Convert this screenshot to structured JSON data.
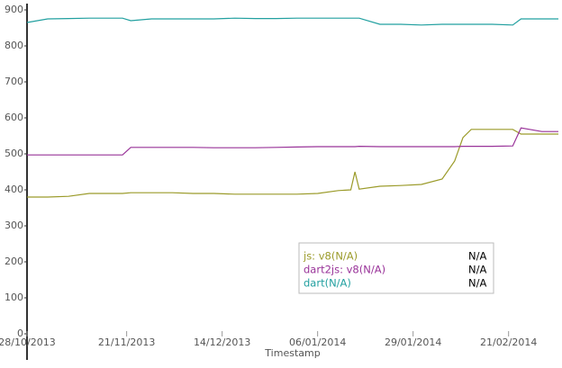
{
  "chart_data": {
    "type": "line",
    "x_label": "Timestamp",
    "x": [
      "28/10/2013",
      "02/11/2013",
      "07/11/2013",
      "12/11/2013",
      "17/11/2013",
      "20/11/2013",
      "22/11/2013",
      "27/11/2013",
      "02/12/2013",
      "07/12/2013",
      "12/12/2013",
      "17/12/2013",
      "22/12/2013",
      "27/12/2013",
      "01/01/2014",
      "06/01/2014",
      "11/01/2014",
      "14/01/2014",
      "15/01/2014",
      "16/01/2014",
      "21/01/2014",
      "26/01/2014",
      "31/01/2014",
      "05/02/2014",
      "08/02/2014",
      "10/02/2014",
      "12/02/2014",
      "17/02/2014",
      "22/02/2014",
      "24/02/2014",
      "01/03/2014",
      "05/03/2014"
    ],
    "series": [
      {
        "name": "js: v8(N/A)",
        "legend_value": "N/A",
        "color": "#9b9b2a",
        "values": [
          380,
          380,
          382,
          390,
          390,
          390,
          392,
          392,
          392,
          390,
          390,
          388,
          388,
          388,
          388,
          390,
          398,
          400,
          450,
          402,
          410,
          412,
          415,
          430,
          480,
          545,
          568,
          568,
          568,
          555,
          555,
          555
        ]
      },
      {
        "name": "dart2js: v8(N/A)",
        "legend_value": "N/A",
        "color": "#993399",
        "values": [
          497,
          497,
          497,
          497,
          497,
          497,
          518,
          518,
          518,
          518,
          517,
          517,
          517,
          518,
          519,
          520,
          520,
          520,
          520,
          521,
          520,
          520,
          520,
          520,
          520,
          521,
          521,
          521,
          522,
          572,
          562,
          562
        ]
      },
      {
        "name": "dart(N/A)",
        "legend_value": "N/A",
        "color": "#22a0a0",
        "values": [
          865,
          875,
          876,
          877,
          877,
          877,
          870,
          875,
          875,
          875,
          875,
          877,
          876,
          876,
          877,
          877,
          877,
          877,
          877,
          877,
          860,
          860,
          858,
          860,
          860,
          860,
          860,
          860,
          858,
          875,
          875,
          875
        ]
      }
    ],
    "xlim": [
      "28/10/2013",
      "05/03/2014"
    ],
    "xticks": [
      "28/10/2013",
      "21/11/2013",
      "14/12/2013",
      "06/01/2014",
      "29/01/2014",
      "21/02/2014"
    ],
    "ylim": [
      0,
      900
    ],
    "yticks": [
      0,
      100,
      200,
      300,
      400,
      500,
      600,
      700,
      800,
      900
    ]
  }
}
